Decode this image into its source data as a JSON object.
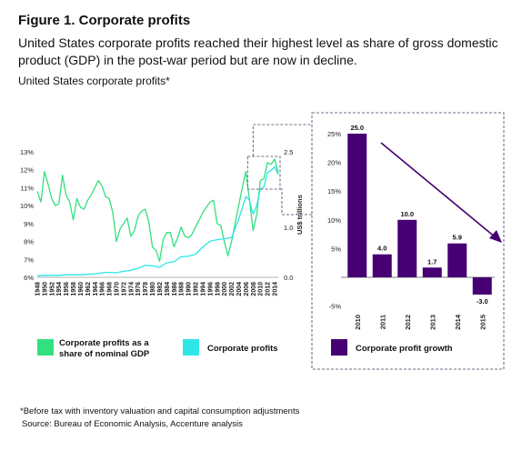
{
  "header": {
    "title": "Figure 1. Corporate profits",
    "subtitle": "United States corporate profits reached their highest level as share of gross domestic product (GDP) in the post-war period but are now in decline.",
    "chart_title": "United States corporate profits*"
  },
  "legend": {
    "share": "Corporate profits as a share of nominal GDP",
    "profits": "Corporate profits",
    "growth": "Corporate profit growth"
  },
  "footer": {
    "footnote": "*Before tax with inventory valuation and capital consumption adjustments",
    "source": "Source: Bureau of Economic Analysis, Accenture analysis"
  },
  "colors": {
    "share": "#33e07f",
    "profits": "#2ee6e6",
    "growth": "#460073",
    "accent": "#7a6a8a"
  },
  "chart_data": [
    {
      "type": "line",
      "x_ticks": [
        "1948",
        "1950",
        "1952",
        "1954",
        "1956",
        "1958",
        "1960",
        "1962",
        "1964",
        "1966",
        "1968",
        "1970",
        "1972",
        "1974",
        "1976",
        "1978",
        "1980",
        "1982",
        "1984",
        "1986",
        "1988",
        "1990",
        "1992",
        "1994",
        "1996",
        "1998",
        "2000",
        "2002",
        "2004",
        "2006",
        "2008",
        "2010",
        "2012",
        "2014"
      ],
      "y_left_ticks": [
        "13%",
        "12%",
        "11%",
        "10%",
        "9%",
        "8%",
        "7%",
        "6%"
      ],
      "ylim_left": [
        6,
        13
      ],
      "y_right_ticks": [
        "2.5",
        "1.0",
        "0.0"
      ],
      "ylabel_right": "US$ trillions",
      "ylim_right": [
        0,
        2.5
      ],
      "series": [
        {
          "name": "Corporate profits as a share of nominal GDP",
          "axis": "left",
          "x": [
            1948,
            1949,
            1950,
            1951,
            1952,
            1953,
            1954,
            1955,
            1956,
            1957,
            1958,
            1959,
            1960,
            1961,
            1962,
            1963,
            1964,
            1965,
            1966,
            1967,
            1968,
            1969,
            1970,
            1971,
            1972,
            1973,
            1974,
            1975,
            1976,
            1977,
            1978,
            1979,
            1980,
            1981,
            1982,
            1983,
            1984,
            1985,
            1986,
            1987,
            1988,
            1989,
            1990,
            1991,
            1992,
            1993,
            1994,
            1995,
            1996,
            1997,
            1998,
            1999,
            2000,
            2001,
            2002,
            2003,
            2004,
            2005,
            2006,
            2007,
            2008,
            2009,
            2010,
            2011,
            2012,
            2013,
            2014,
            2015
          ],
          "y": [
            10.8,
            10.2,
            11.9,
            11.2,
            10.4,
            10.0,
            10.1,
            11.7,
            10.6,
            10.2,
            9.2,
            10.4,
            9.9,
            9.8,
            10.3,
            10.6,
            11.0,
            11.4,
            11.1,
            10.5,
            10.4,
            9.6,
            8.0,
            8.7,
            9.0,
            9.3,
            8.3,
            8.6,
            9.4,
            9.7,
            9.8,
            9.1,
            7.7,
            7.5,
            6.9,
            8.1,
            8.5,
            8.5,
            7.7,
            8.2,
            8.8,
            8.3,
            8.2,
            8.4,
            8.8,
            9.2,
            9.6,
            9.9,
            10.2,
            10.3,
            9.0,
            8.9,
            8.0,
            7.2,
            8.0,
            9.0,
            10.0,
            11.0,
            11.9,
            10.3,
            8.6,
            9.5,
            11.4,
            11.5,
            12.4,
            12.3,
            12.6,
            11.8
          ]
        },
        {
          "name": "Corporate profits",
          "axis": "right",
          "x": [
            1948,
            1950,
            1952,
            1954,
            1956,
            1958,
            1960,
            1962,
            1964,
            1966,
            1968,
            1970,
            1972,
            1974,
            1976,
            1978,
            1980,
            1982,
            1984,
            1986,
            1988,
            1990,
            1992,
            1994,
            1996,
            1998,
            2000,
            2002,
            2004,
            2006,
            2007,
            2008,
            2009,
            2010,
            2011,
            2012,
            2013,
            2014,
            2015
          ],
          "y": [
            0.03,
            0.04,
            0.04,
            0.04,
            0.05,
            0.05,
            0.05,
            0.06,
            0.07,
            0.09,
            0.1,
            0.09,
            0.12,
            0.14,
            0.18,
            0.24,
            0.23,
            0.2,
            0.29,
            0.31,
            0.41,
            0.42,
            0.46,
            0.6,
            0.72,
            0.75,
            0.77,
            0.79,
            1.16,
            1.61,
            1.53,
            1.26,
            1.43,
            1.76,
            1.8,
            2.09,
            2.13,
            2.2,
            2.05
          ]
        }
      ]
    },
    {
      "type": "bar",
      "title": "Corporate profit growth",
      "categories": [
        "2010",
        "2011",
        "2012",
        "2013",
        "2014",
        "2015"
      ],
      "values": [
        25.0,
        4.0,
        10.0,
        1.7,
        5.9,
        -3.0
      ],
      "labels": [
        "25.0",
        "4.0",
        "10.0",
        "1.7",
        "5.9",
        "-3.0"
      ],
      "y_ticks": [
        "25%",
        "20%",
        "15%",
        "10%",
        "5%",
        "-5%"
      ],
      "ylim": [
        -5,
        25
      ]
    }
  ]
}
